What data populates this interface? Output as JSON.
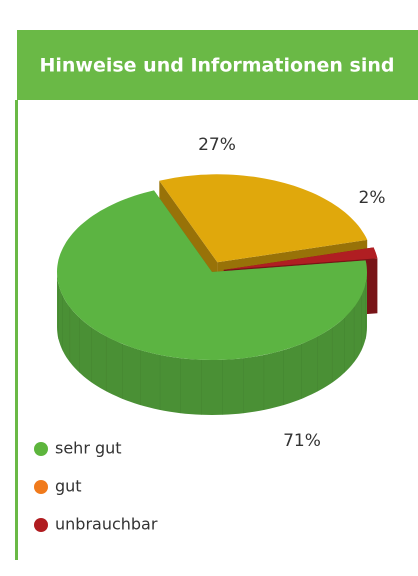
{
  "chart_data": {
    "type": "pie",
    "title": "Hinweise und Informationen sind",
    "categories": [
      "sehr gut",
      "gut",
      "unbrauchbar"
    ],
    "values": [
      71,
      27,
      2
    ],
    "value_labels": [
      "71%",
      "27%",
      "2%"
    ],
    "colors": [
      "#5cb442",
      "#e0a80c",
      "#b01e22"
    ],
    "legend_colors": [
      "#5db53d",
      "#f07a1c",
      "#b01c20"
    ]
  }
}
